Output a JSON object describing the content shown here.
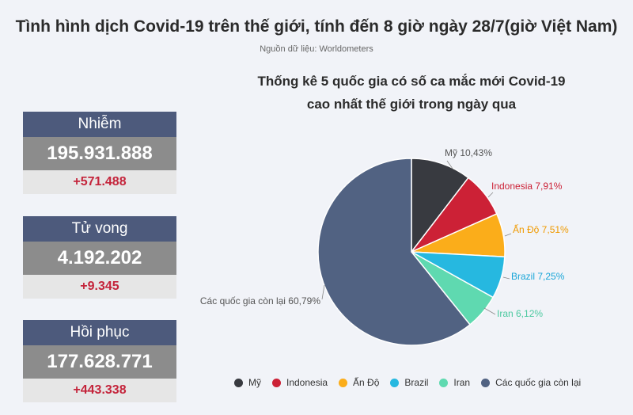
{
  "header": {
    "title": "Tình hình dịch Covid-19 trên thế giới, tính đến 8 giờ ngày 28/7(giờ Việt Nam)",
    "source": "Nguồn dữ liệu: Worldometers"
  },
  "stats": [
    {
      "label": "Nhiễm",
      "value": "195.931.888",
      "delta": "+571.488"
    },
    {
      "label": "Tử vong",
      "value": "4.192.202",
      "delta": "+9.345"
    },
    {
      "label": "Hồi phục",
      "value": "177.628.771",
      "delta": "+443.338"
    }
  ],
  "chart_data": {
    "type": "pie",
    "title_line1": "Thống kê 5 quốc gia có số ca mắc  mới Covid-19",
    "title_line2": "cao nhất thế giới trong ngày qua",
    "slices": [
      {
        "name": "Mỹ",
        "value": 10.43,
        "label": "Mỹ 10,43%",
        "color": "#383a40",
        "label_color": "#555555"
      },
      {
        "name": "Indonesia",
        "value": 7.91,
        "label": "Indonesia 7,91%",
        "color": "#cc2136",
        "label_color": "#cc2136"
      },
      {
        "name": "Ấn Độ",
        "value": 7.51,
        "label": "Ấn Độ 7,51%",
        "color": "#fbad1a",
        "label_color": "#f09a00"
      },
      {
        "name": "Brazil",
        "value": 7.25,
        "label": "Brazil 7,25%",
        "color": "#26b8e0",
        "label_color": "#1aa6d8"
      },
      {
        "name": "Iran",
        "value": 6.12,
        "label": "Iran 6,12%",
        "color": "#5fd9b0",
        "label_color": "#4cc9a0"
      },
      {
        "name": "Các quốc gia còn lại",
        "value": 60.79,
        "label": "Các quốc gia còn lại 60,79%",
        "color": "#516282",
        "label_color": "#555555"
      }
    ],
    "legend_position": "bottom"
  }
}
